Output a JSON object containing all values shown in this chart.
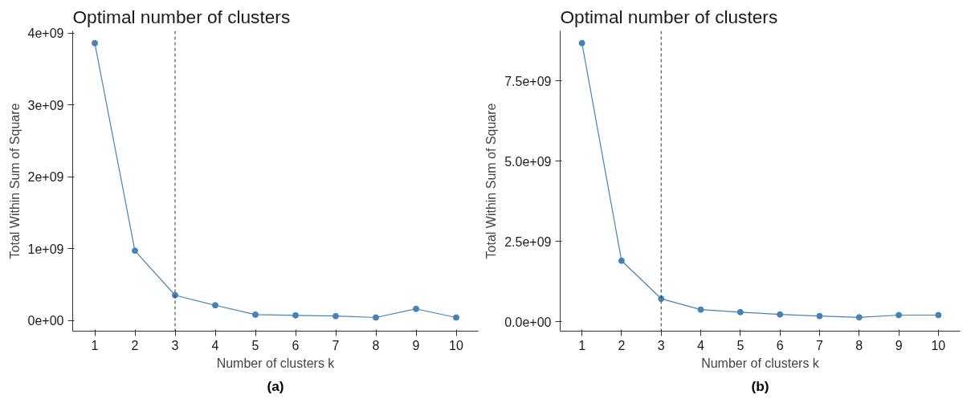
{
  "chart_data": [
    {
      "type": "line",
      "title": "Optimal number of clusters",
      "xlabel": "Number of clusters k",
      "ylabel": "Total Within Sum of Square",
      "x": [
        1,
        2,
        3,
        4,
        5,
        6,
        7,
        8,
        9,
        10
      ],
      "series": [
        {
          "color": "#4682b4",
          "values": [
            3860000000,
            970000000,
            350000000,
            210000000,
            80000000,
            70000000,
            60000000,
            40000000,
            160000000,
            40000000
          ]
        }
      ],
      "xlim": [
        0.45,
        10.55
      ],
      "xticks": [
        1,
        2,
        3,
        4,
        5,
        6,
        7,
        8,
        9,
        10
      ],
      "ylim": [
        -150000000,
        4030000000
      ],
      "yticks": [
        {
          "value": 0,
          "label": "0e+00"
        },
        {
          "value": 1000000000,
          "label": "1e+09"
        },
        {
          "value": 2000000000,
          "label": "2e+09"
        },
        {
          "value": 3000000000,
          "label": "3e+09"
        },
        {
          "value": 4000000000,
          "label": "4e+09"
        }
      ],
      "ref_lines": [
        {
          "axis": "x",
          "value": 3,
          "line_style": "dashed",
          "color": "#333333"
        }
      ],
      "marker": "circle",
      "grid": false,
      "annotations": [
        "(a)"
      ]
    },
    {
      "type": "line",
      "title": "Optimal number of clusters",
      "xlabel": "Number of clusters k",
      "ylabel": "Total Within Sum of Square",
      "x": [
        1,
        2,
        3,
        4,
        5,
        6,
        7,
        8,
        9,
        10
      ],
      "series": [
        {
          "color": "#4682b4",
          "values": [
            8670000000,
            1900000000,
            720000000,
            380000000,
            300000000,
            230000000,
            180000000,
            140000000,
            210000000,
            210000000
          ]
        }
      ],
      "xlim": [
        0.45,
        10.55
      ],
      "xticks": [
        1,
        2,
        3,
        4,
        5,
        6,
        7,
        8,
        9,
        10
      ],
      "ylim": [
        -290000000,
        9050000000
      ],
      "yticks": [
        {
          "value": 0,
          "label": "0.0e+00"
        },
        {
          "value": 2500000000,
          "label": "2.5e+09"
        },
        {
          "value": 5000000000,
          "label": "5.0e+09"
        },
        {
          "value": 7500000000,
          "label": "7.5e+09"
        }
      ],
      "ref_lines": [
        {
          "axis": "x",
          "value": 3,
          "line_style": "dashed",
          "color": "#333333"
        }
      ],
      "marker": "circle",
      "grid": false,
      "annotations": [
        "(b)"
      ]
    }
  ]
}
